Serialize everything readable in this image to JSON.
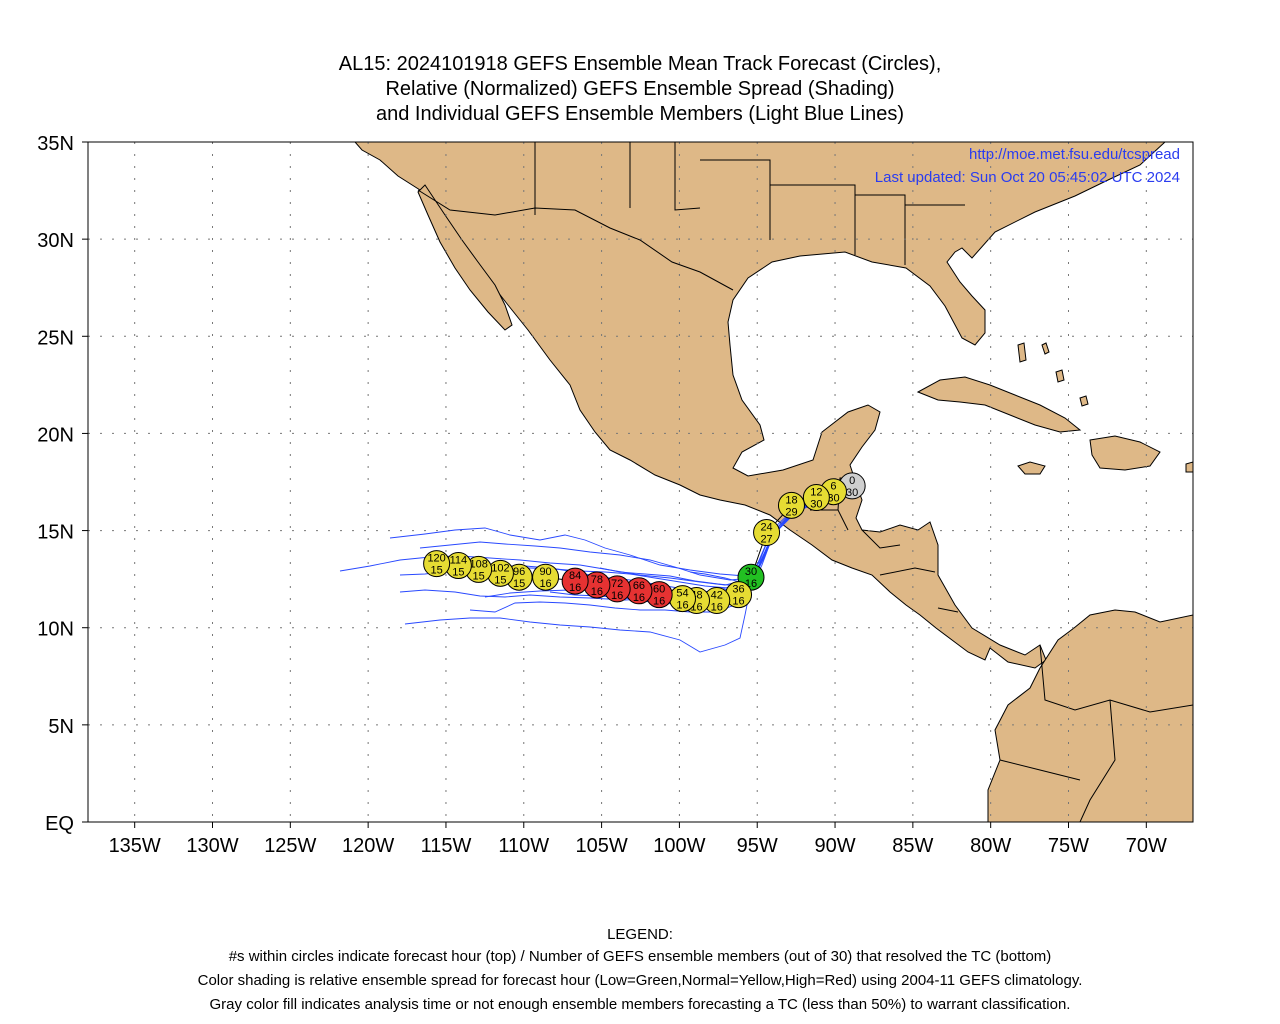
{
  "title": {
    "line1": "AL15: 2024101918 GEFS Ensemble Mean Track Forecast (Circles),",
    "line2": "Relative (Normalized) GEFS Ensemble Spread (Shading)",
    "line3": "and Individual GEFS Ensemble Members (Light Blue Lines)"
  },
  "map": {
    "lon_range": [
      -138,
      -67
    ],
    "lat_range": [
      0,
      35
    ],
    "lat_ticks": [
      35,
      30,
      25,
      20,
      15,
      10,
      5,
      0
    ],
    "lat_labels": [
      "35N",
      "30N",
      "25N",
      "20N",
      "15N",
      "10N",
      "5N",
      "EQ"
    ],
    "lon_ticks": [
      -135,
      -130,
      -125,
      -120,
      -115,
      -110,
      -105,
      -100,
      -95,
      -90,
      -85,
      -80,
      -75,
      -70
    ],
    "lon_labels": [
      "135W",
      "130W",
      "125W",
      "120W",
      "115W",
      "110W",
      "105W",
      "100W",
      "95W",
      "90W",
      "85W",
      "80W",
      "75W",
      "70W"
    ],
    "grid": "dotted",
    "land_color": "#deb887",
    "ocean_color": "#ffffff",
    "member_color": "#1f3fff",
    "source_url": "http://moe.met.fsu.edu/tcspread",
    "last_updated": "Last updated: Sun Oct 20 05:45:02 UTC 2024"
  },
  "colors": {
    "low": "#22c022",
    "normal": "#e6dc33",
    "high": "#e63232",
    "gray": "#cfcfcf"
  },
  "track_points": [
    {
      "hour": "0",
      "members": "30",
      "lon": -88.9,
      "lat": 17.3,
      "spread": "gray"
    },
    {
      "hour": "6",
      "members": "30",
      "lon": -90.1,
      "lat": 17.0,
      "spread": "normal"
    },
    {
      "hour": "12",
      "members": "30",
      "lon": -91.2,
      "lat": 16.7,
      "spread": "normal"
    },
    {
      "hour": "18",
      "members": "29",
      "lon": -92.8,
      "lat": 16.3,
      "spread": "normal"
    },
    {
      "hour": "24",
      "members": "27",
      "lon": -94.4,
      "lat": 14.9,
      "spread": "normal"
    },
    {
      "hour": "30",
      "members": "16",
      "lon": -95.4,
      "lat": 12.6,
      "spread": "low"
    },
    {
      "hour": "36",
      "members": "16",
      "lon": -96.2,
      "lat": 11.7,
      "spread": "normal"
    },
    {
      "hour": "42",
      "members": "16",
      "lon": -97.6,
      "lat": 11.4,
      "spread": "normal"
    },
    {
      "hour": "48",
      "members": "16",
      "lon": -98.9,
      "lat": 11.4,
      "spread": "normal"
    },
    {
      "hour": "54",
      "members": "16",
      "lon": -99.8,
      "lat": 11.5,
      "spread": "normal"
    },
    {
      "hour": "60",
      "members": "16",
      "lon": -101.3,
      "lat": 11.7,
      "spread": "high"
    },
    {
      "hour": "66",
      "members": "16",
      "lon": -102.6,
      "lat": 11.9,
      "spread": "high"
    },
    {
      "hour": "72",
      "members": "16",
      "lon": -104.0,
      "lat": 12.0,
      "spread": "high"
    },
    {
      "hour": "78",
      "members": "16",
      "lon": -105.3,
      "lat": 12.2,
      "spread": "high"
    },
    {
      "hour": "84",
      "members": "16",
      "lon": -106.7,
      "lat": 12.4,
      "spread": "high"
    },
    {
      "hour": "90",
      "members": "16",
      "lon": -108.6,
      "lat": 12.6,
      "spread": "normal"
    },
    {
      "hour": "96",
      "members": "15",
      "lon": -110.3,
      "lat": 12.6,
      "spread": "normal"
    },
    {
      "hour": "102",
      "members": "15",
      "lon": -111.5,
      "lat": 12.8,
      "spread": "normal"
    },
    {
      "hour": "108",
      "members": "15",
      "lon": -112.9,
      "lat": 13.0,
      "spread": "normal"
    },
    {
      "hour": "114",
      "members": "15",
      "lon": -114.2,
      "lat": 13.2,
      "spread": "normal"
    },
    {
      "hour": "120",
      "members": "15",
      "lon": -115.6,
      "lat": 13.3,
      "spread": "normal"
    }
  ],
  "legend": {
    "heading": "LEGEND:",
    "line1": "#s within circles indicate forecast hour (top) / Number of GEFS ensemble members (out of 30) that resolved the TC (bottom)",
    "line2": "Color shading is relative ensemble spread for forecast hour (Low=Green,Normal=Yellow,High=Red) using 2004-11 GEFS climatology.",
    "line3": "Gray color fill indicates analysis time or not enough ensemble members forecasting a TC (less than 50%) to warrant classification."
  }
}
